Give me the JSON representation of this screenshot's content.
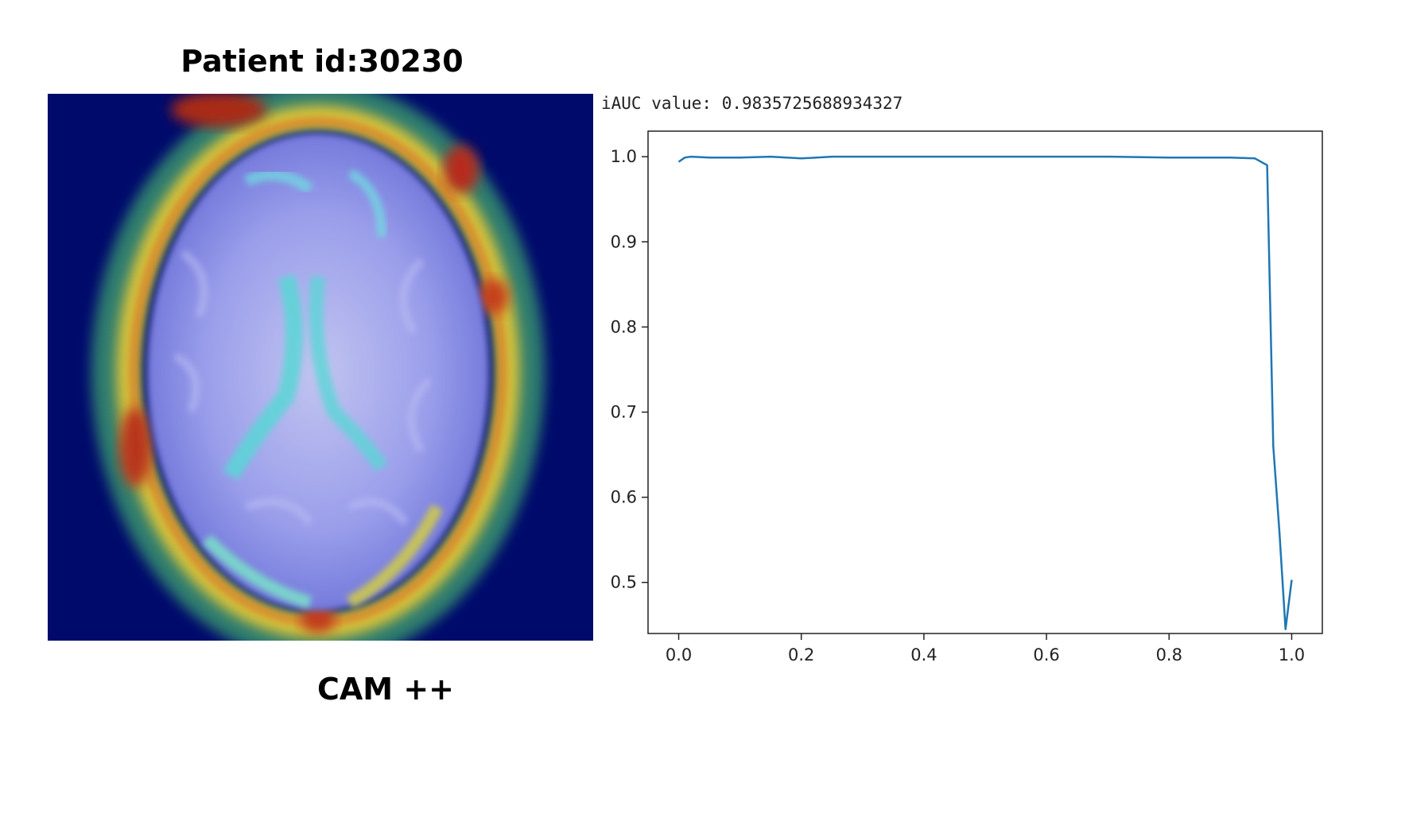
{
  "figure": {
    "title": "Patient id:30230",
    "caption": "CAM ++",
    "iauc_text": "iAUC value: 0.9835725688934327"
  },
  "heatmap": {
    "background": "#000a6b",
    "brain_tint": "#8a90e6",
    "hot": "#c0392b",
    "warm": "#e0c030",
    "cool": "#3fd9c8"
  },
  "chart_data": {
    "type": "line",
    "title": "",
    "xlabel": "",
    "ylabel": "",
    "xlim": [
      -0.05,
      1.05
    ],
    "ylim": [
      0.44,
      1.03
    ],
    "xticks": [
      0.0,
      0.2,
      0.4,
      0.6,
      0.8,
      1.0
    ],
    "xtick_labels": [
      "0.0",
      "0.2",
      "0.4",
      "0.6",
      "0.8",
      "1.0"
    ],
    "yticks": [
      0.5,
      0.6,
      0.7,
      0.8,
      0.9,
      1.0
    ],
    "ytick_labels": [
      "0.5",
      "0.6",
      "0.7",
      "0.8",
      "0.9",
      "1.0"
    ],
    "grid": false,
    "series": [
      {
        "color": "#1f77b4",
        "x": [
          0.0,
          0.01,
          0.02,
          0.05,
          0.1,
          0.15,
          0.2,
          0.25,
          0.3,
          0.4,
          0.5,
          0.6,
          0.7,
          0.8,
          0.9,
          0.94,
          0.96,
          0.97,
          0.98,
          0.99,
          1.0
        ],
        "y": [
          0.994,
          0.999,
          1.0,
          0.999,
          0.999,
          1.0,
          0.998,
          1.0,
          1.0,
          1.0,
          1.0,
          1.0,
          1.0,
          0.999,
          0.999,
          0.998,
          0.99,
          0.66,
          0.56,
          0.445,
          0.503
        ]
      }
    ]
  }
}
